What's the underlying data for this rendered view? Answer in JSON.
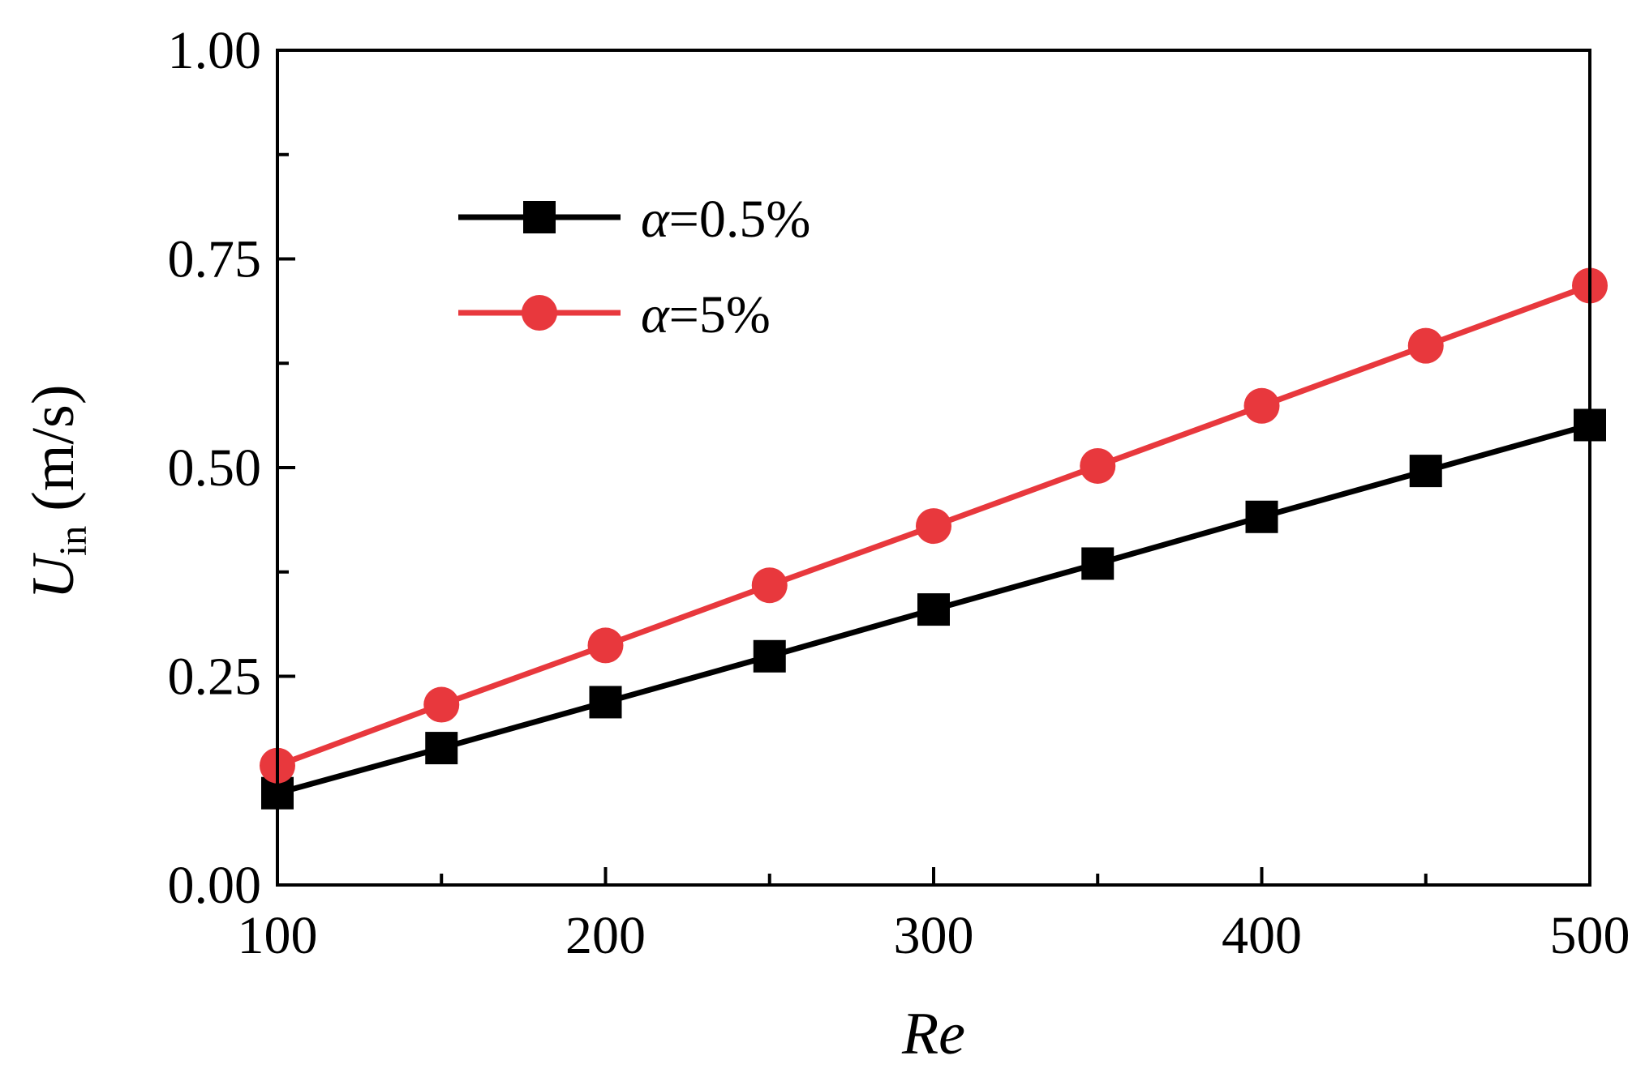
{
  "chart_data": {
    "type": "line",
    "title": "",
    "xlabel": "Re",
    "ylabel": {
      "symbol": "U",
      "subscript": "in",
      "unit": "(m/s)"
    },
    "xlim": [
      100,
      500
    ],
    "ylim": [
      0,
      1
    ],
    "xticks": [
      "100",
      "200",
      "300",
      "400",
      "500"
    ],
    "yticks": [
      "0.00",
      "0.25",
      "0.50",
      "0.75",
      "1.00"
    ],
    "x": [
      100,
      150,
      200,
      250,
      300,
      350,
      400,
      450,
      500
    ],
    "series": [
      {
        "name": "α=0.5%",
        "greek": "α",
        "rest": "=0.5%",
        "color": "#000000",
        "marker": "square",
        "values": [
          0.11,
          0.164,
          0.219,
          0.274,
          0.33,
          0.385,
          0.441,
          0.496,
          0.551
        ]
      },
      {
        "name": "α=5%",
        "greek": "α",
        "rest": "=5%",
        "color": "#e8383d",
        "marker": "circle",
        "values": [
          0.143,
          0.216,
          0.287,
          0.359,
          0.43,
          0.502,
          0.574,
          0.646,
          0.718
        ]
      }
    ],
    "legend_position": "top-left",
    "grid": false
  }
}
